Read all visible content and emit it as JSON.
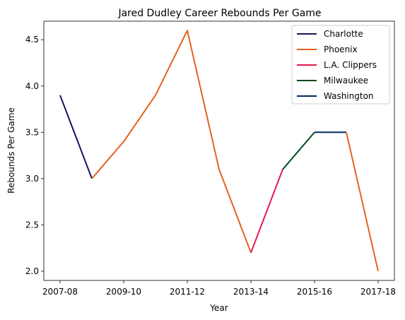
{
  "chart_data": {
    "type": "line",
    "title": "Jared Dudley Career Rebounds Per Game",
    "xlabel": "Year",
    "ylabel": "Rebounds Per Game",
    "x_categories": [
      "2007-08",
      "2008-09",
      "2009-10",
      "2010-11",
      "2011-12",
      "2012-13",
      "2013-14",
      "2014-15",
      "2015-16",
      "2016-17",
      "2017-18"
    ],
    "x_tick_labels": [
      "2007-08",
      "2009-10",
      "2011-12",
      "2013-14",
      "2015-16",
      "2017-18"
    ],
    "ylim": [
      1.9,
      4.7
    ],
    "y_ticks": [
      "2.0",
      "2.5",
      "3.0",
      "3.5",
      "4.0",
      "4.5"
    ],
    "grid": false,
    "legend_position": "top-right",
    "series": [
      {
        "name": "Charlotte",
        "color": "#1d1160",
        "x": [
          "2007-08",
          "2008-09"
        ],
        "y": [
          3.9,
          3.0
        ]
      },
      {
        "name": "Phoenix",
        "color": "#e56020",
        "x": [
          "2008-09",
          "2009-10",
          "2010-11",
          "2011-12",
          "2012-13",
          "2013-14"
        ],
        "y": [
          3.0,
          3.4,
          3.9,
          4.6,
          3.1,
          2.2
        ]
      },
      {
        "name": "L.A. Clippers",
        "color": "#e8174d",
        "x": [
          "2013-14",
          "2014-15"
        ],
        "y": [
          2.2,
          3.1
        ]
      },
      {
        "name": "Milwaukee",
        "color": "#00471b",
        "x": [
          "2014-15",
          "2015-16"
        ],
        "y": [
          3.1,
          3.5
        ]
      },
      {
        "name": "Washington",
        "color": "#002b5c",
        "x": [
          "2015-16",
          "2016-17"
        ],
        "y": [
          3.5,
          3.5
        ]
      },
      {
        "name": "Phoenix",
        "color": "#e56020",
        "show_in_legend": false,
        "x": [
          "2016-17",
          "2017-18"
        ],
        "y": [
          3.5,
          2.0
        ]
      }
    ]
  }
}
